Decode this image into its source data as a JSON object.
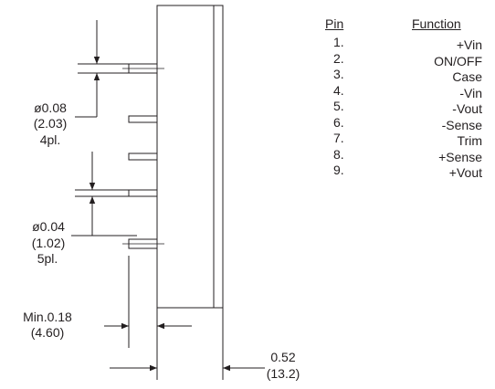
{
  "dimensions": {
    "pin_dia_large": {
      "inch": "ø0.08",
      "mm": "(2.03)",
      "qty": "4pl."
    },
    "pin_dia_small": {
      "inch": "ø0.04",
      "mm": "(1.02)",
      "qty": "5pl."
    },
    "min_pin_length": {
      "inch": "Min.0.18",
      "mm": "(4.60)"
    },
    "body_width": {
      "inch": "0.52",
      "mm": "(13.2)"
    }
  },
  "pin_table": {
    "header_pin": "Pin",
    "header_function": "Function",
    "rows": [
      {
        "pin": "1.",
        "function": "+Vin"
      },
      {
        "pin": "2.",
        "function": "ON/OFF"
      },
      {
        "pin": "3.",
        "function": "Case"
      },
      {
        "pin": "4.",
        "function": "-Vin"
      },
      {
        "pin": "5.",
        "function": "-Vout"
      },
      {
        "pin": "6.",
        "function": "-Sense"
      },
      {
        "pin": "7.",
        "function": "Trim"
      },
      {
        "pin": "8.",
        "function": "+Sense"
      },
      {
        "pin": "9.",
        "function": "+Vout"
      }
    ]
  },
  "colors": {
    "line": "#231f20",
    "background": "#ffffff"
  }
}
